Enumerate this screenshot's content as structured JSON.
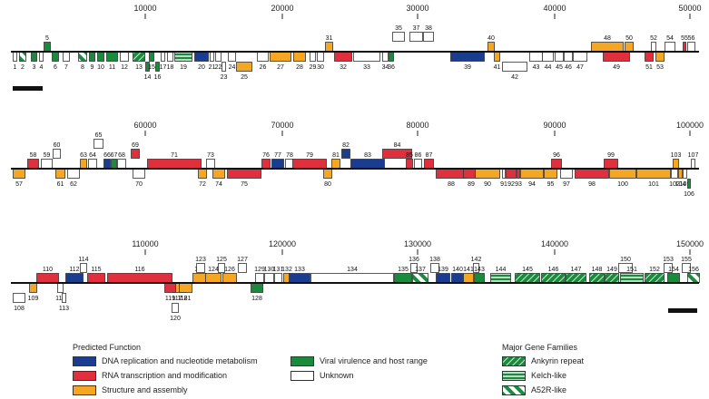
{
  "colors": {
    "blue": "#1a3d8f",
    "red": "#e0303d",
    "orange": "#f5a623",
    "green": "#1a8a3c",
    "white": "#ffffff"
  },
  "rows": [
    {
      "ticks": [
        "10000",
        "20000",
        "30000",
        "40000",
        "50000"
      ],
      "genes": [
        {
          "n": "1",
          "c": "white"
        },
        {
          "n": "2",
          "c": "a52r"
        },
        {
          "n": "3",
          "c": "green"
        },
        {
          "n": "4",
          "c": "white"
        },
        {
          "n": "5",
          "c": "green"
        },
        {
          "n": "6",
          "c": "green"
        },
        {
          "n": "7",
          "c": "white"
        },
        {
          "n": "8",
          "c": "a52r"
        },
        {
          "n": "9",
          "c": "green"
        },
        {
          "n": "10",
          "c": "green"
        },
        {
          "n": "11",
          "c": "green"
        },
        {
          "n": "12",
          "c": "white"
        },
        {
          "n": "13",
          "c": "ankyrin"
        },
        {
          "n": "14",
          "c": "green"
        },
        {
          "n": "15",
          "c": "green"
        },
        {
          "n": "16",
          "c": "green"
        },
        {
          "n": "17",
          "c": "white"
        },
        {
          "n": "18",
          "c": "white"
        },
        {
          "n": "19",
          "c": "kelch"
        },
        {
          "n": "20",
          "c": "blue"
        },
        {
          "n": "21",
          "c": "white"
        },
        {
          "n": "22",
          "c": "white"
        },
        {
          "n": "23",
          "c": "white"
        },
        {
          "n": "24",
          "c": "white"
        },
        {
          "n": "25",
          "c": "orange"
        },
        {
          "n": "26",
          "c": "white"
        },
        {
          "n": "27",
          "c": "orange"
        },
        {
          "n": "28",
          "c": "orange"
        },
        {
          "n": "29",
          "c": "white"
        },
        {
          "n": "30",
          "c": "white"
        },
        {
          "n": "31",
          "c": "orange"
        },
        {
          "n": "32",
          "c": "red"
        },
        {
          "n": "33",
          "c": "white"
        },
        {
          "n": "34",
          "c": "white"
        },
        {
          "n": "35",
          "c": "white"
        },
        {
          "n": "36",
          "c": "green"
        },
        {
          "n": "37",
          "c": "white"
        },
        {
          "n": "38",
          "c": "white"
        },
        {
          "n": "39",
          "c": "blue"
        },
        {
          "n": "40",
          "c": "orange"
        },
        {
          "n": "41",
          "c": "orange"
        },
        {
          "n": "42",
          "c": "white"
        },
        {
          "n": "43",
          "c": "white"
        },
        {
          "n": "44",
          "c": "white"
        },
        {
          "n": "45",
          "c": "white"
        },
        {
          "n": "46",
          "c": "white"
        },
        {
          "n": "47",
          "c": "white"
        },
        {
          "n": "48",
          "c": "orange"
        },
        {
          "n": "49",
          "c": "red"
        },
        {
          "n": "50",
          "c": "orange"
        },
        {
          "n": "51",
          "c": "red"
        },
        {
          "n": "52",
          "c": "white"
        },
        {
          "n": "53",
          "c": "orange"
        },
        {
          "n": "54",
          "c": "white"
        },
        {
          "n": "55",
          "c": "red"
        },
        {
          "n": "56",
          "c": "white"
        }
      ]
    },
    {
      "ticks": [
        "60000",
        "70000",
        "80000",
        "90000",
        "100000"
      ],
      "genes": [
        {
          "n": "57",
          "c": "orange"
        },
        {
          "n": "58",
          "c": "red"
        },
        {
          "n": "59",
          "c": "white"
        },
        {
          "n": "60",
          "c": "white"
        },
        {
          "n": "61",
          "c": "orange"
        },
        {
          "n": "62",
          "c": "white"
        },
        {
          "n": "63",
          "c": "orange"
        },
        {
          "n": "64",
          "c": "white"
        },
        {
          "n": "65",
          "c": "white"
        },
        {
          "n": "66",
          "c": "blue"
        },
        {
          "n": "67",
          "c": "green"
        },
        {
          "n": "68",
          "c": "white"
        },
        {
          "n": "69",
          "c": "red"
        },
        {
          "n": "70",
          "c": "white"
        },
        {
          "n": "71",
          "c": "red"
        },
        {
          "n": "72",
          "c": "orange"
        },
        {
          "n": "73",
          "c": "white"
        },
        {
          "n": "74",
          "c": "orange"
        },
        {
          "n": "75",
          "c": "red"
        },
        {
          "n": "76",
          "c": "red"
        },
        {
          "n": "77",
          "c": "blue"
        },
        {
          "n": "78",
          "c": "white"
        },
        {
          "n": "79",
          "c": "red"
        },
        {
          "n": "80",
          "c": "orange"
        },
        {
          "n": "81",
          "c": "orange"
        },
        {
          "n": "82",
          "c": "blue"
        },
        {
          "n": "83",
          "c": "blue"
        },
        {
          "n": "84",
          "c": "red"
        },
        {
          "n": "85",
          "c": "red"
        },
        {
          "n": "86",
          "c": "white"
        },
        {
          "n": "87",
          "c": "red"
        },
        {
          "n": "88",
          "c": "red"
        },
        {
          "n": "89",
          "c": "red"
        },
        {
          "n": "90",
          "c": "orange"
        },
        {
          "n": "91",
          "c": "white"
        },
        {
          "n": "92",
          "c": "red"
        },
        {
          "n": "93",
          "c": "red"
        },
        {
          "n": "94",
          "c": "orange"
        },
        {
          "n": "95",
          "c": "orange"
        },
        {
          "n": "96",
          "c": "red"
        },
        {
          "n": "97",
          "c": "white"
        },
        {
          "n": "98",
          "c": "red"
        },
        {
          "n": "99",
          "c": "red"
        },
        {
          "n": "100",
          "c": "orange"
        },
        {
          "n": "101",
          "c": "orange"
        },
        {
          "n": "102",
          "c": "white"
        },
        {
          "n": "103",
          "c": "orange"
        },
        {
          "n": "104",
          "c": "orange"
        },
        {
          "n": "105",
          "c": "white"
        },
        {
          "n": "106",
          "c": "green"
        },
        {
          "n": "107",
          "c": "white"
        }
      ]
    },
    {
      "ticks": [
        "110000",
        "120000",
        "130000",
        "140000",
        "150000"
      ],
      "genes": [
        {
          "n": "108",
          "c": "white"
        },
        {
          "n": "109",
          "c": "orange"
        },
        {
          "n": "110",
          "c": "red"
        },
        {
          "n": "111",
          "c": "white"
        },
        {
          "n": "112",
          "c": "blue"
        },
        {
          "n": "113",
          "c": "white"
        },
        {
          "n": "114",
          "c": "white"
        },
        {
          "n": "115",
          "c": "red"
        },
        {
          "n": "116",
          "c": "red"
        },
        {
          "n": "117",
          "c": "orange"
        },
        {
          "n": "118",
          "c": "white"
        },
        {
          "n": "119",
          "c": "red"
        },
        {
          "n": "120",
          "c": "white"
        },
        {
          "n": "121",
          "c": "orange"
        },
        {
          "n": "122",
          "c": "orange"
        },
        {
          "n": "123",
          "c": "white"
        },
        {
          "n": "124",
          "c": "orange"
        },
        {
          "n": "125",
          "c": "white"
        },
        {
          "n": "126",
          "c": "orange"
        },
        {
          "n": "127",
          "c": "white"
        },
        {
          "n": "128",
          "c": "green"
        },
        {
          "n": "129",
          "c": "white"
        },
        {
          "n": "130",
          "c": "white"
        },
        {
          "n": "131",
          "c": "white"
        },
        {
          "n": "132",
          "c": "orange"
        },
        {
          "n": "133",
          "c": "blue"
        },
        {
          "n": "134",
          "c": "white"
        },
        {
          "n": "135",
          "c": "green"
        },
        {
          "n": "136",
          "c": "white"
        },
        {
          "n": "137",
          "c": "a52r"
        },
        {
          "n": "138",
          "c": "white"
        },
        {
          "n": "139",
          "c": "blue"
        },
        {
          "n": "140",
          "c": "blue"
        },
        {
          "n": "141",
          "c": "orange"
        },
        {
          "n": "142",
          "c": "white"
        },
        {
          "n": "143",
          "c": "green"
        },
        {
          "n": "144",
          "c": "kelch"
        },
        {
          "n": "145",
          "c": "ankyrin"
        },
        {
          "n": "146",
          "c": "ankyrin"
        },
        {
          "n": "147",
          "c": "ankyrin"
        },
        {
          "n": "148",
          "c": "ankyrin"
        },
        {
          "n": "149",
          "c": "ankyrin"
        },
        {
          "n": "150",
          "c": "white"
        },
        {
          "n": "151",
          "c": "kelch"
        },
        {
          "n": "152",
          "c": "ankyrin"
        },
        {
          "n": "153",
          "c": "white"
        },
        {
          "n": "154",
          "c": "green"
        },
        {
          "n": "155",
          "c": "white"
        },
        {
          "n": "156",
          "c": "a52r"
        }
      ]
    }
  ],
  "legend": {
    "function_title": "Predicted Function",
    "families_title": "Major Gene Families",
    "functions": [
      {
        "label": "DNA replication and nucleotide metabolism",
        "c": "blue"
      },
      {
        "label": "RNA transcription and modification",
        "c": "red"
      },
      {
        "label": "Structure and assembly",
        "c": "orange"
      },
      {
        "label": "Viral virulence and host range",
        "c": "green"
      },
      {
        "label": "Unknown",
        "c": "white"
      }
    ],
    "families": [
      {
        "label": "Ankyrin repeat",
        "c": "ankyrin"
      },
      {
        "label": "Kelch-like",
        "c": "kelch"
      },
      {
        "label": "A52R-like",
        "c": "a52r"
      }
    ]
  }
}
